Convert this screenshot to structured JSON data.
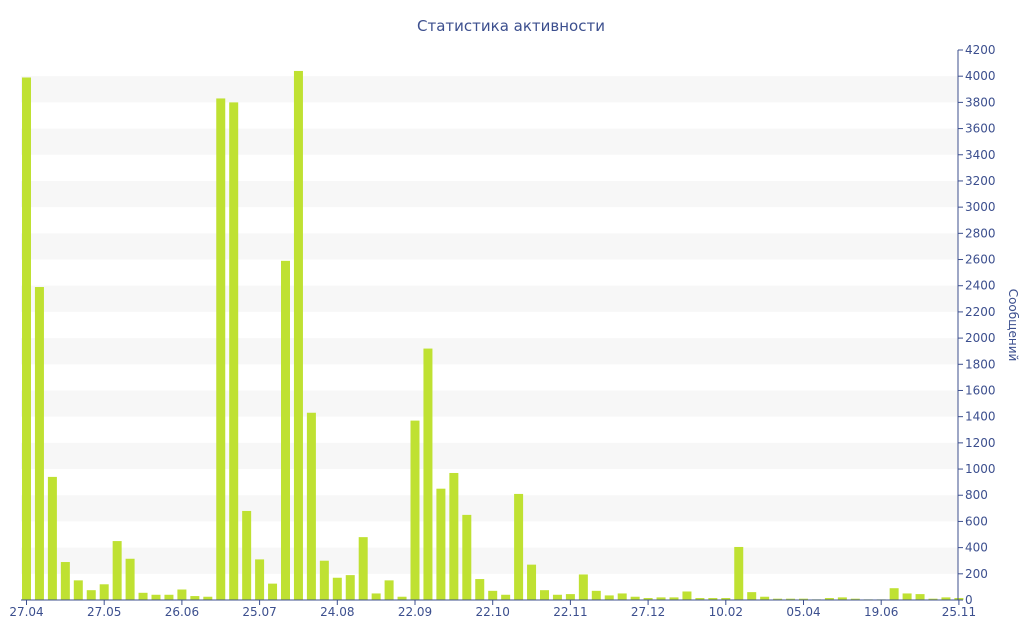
{
  "chart_data": {
    "type": "bar",
    "title": "Статистика активности",
    "ylabel": "Сообщений",
    "xlabel": "",
    "ylim": [
      0,
      4200
    ],
    "y_ticks": [
      0,
      200,
      400,
      600,
      800,
      1000,
      1200,
      1400,
      1600,
      1800,
      2000,
      2200,
      2400,
      2600,
      2800,
      3000,
      3200,
      3400,
      3600,
      3800,
      4000,
      4200
    ],
    "y_axis_position": "right",
    "grid": "alternating horizontal bands",
    "x_tick_labels": [
      {
        "label": "27.04",
        "index": 0
      },
      {
        "label": "27.05",
        "index": 6
      },
      {
        "label": "26.06",
        "index": 12
      },
      {
        "label": "25.07",
        "index": 18
      },
      {
        "label": "24.08",
        "index": 24
      },
      {
        "label": "22.09",
        "index": 30
      },
      {
        "label": "22.10",
        "index": 36
      },
      {
        "label": "22.11",
        "index": 42
      },
      {
        "label": "27.12",
        "index": 48
      },
      {
        "label": "10.02",
        "index": 54
      },
      {
        "label": "05.04",
        "index": 60
      },
      {
        "label": "19.06",
        "index": 66
      },
      {
        "label": "25.11",
        "index": 72
      }
    ],
    "values": [
      3990,
      2390,
      940,
      290,
      150,
      75,
      120,
      450,
      315,
      55,
      40,
      40,
      80,
      30,
      25,
      3830,
      3800,
      680,
      310,
      125,
      2590,
      4040,
      1430,
      300,
      170,
      190,
      480,
      50,
      150,
      25,
      1370,
      1920,
      850,
      970,
      650,
      160,
      70,
      40,
      810,
      270,
      75,
      40,
      45,
      195,
      70,
      35,
      50,
      25,
      15,
      20,
      20,
      65,
      15,
      15,
      15,
      405,
      60,
      25,
      10,
      10,
      10,
      5,
      15,
      20,
      10,
      5,
      5,
      90,
      50,
      45,
      10,
      20,
      15
    ],
    "colors": {
      "bar": "#bfe132",
      "text": "#3c4f8e",
      "band": "#f7f7f7",
      "axis": "#3c4f8e"
    }
  }
}
